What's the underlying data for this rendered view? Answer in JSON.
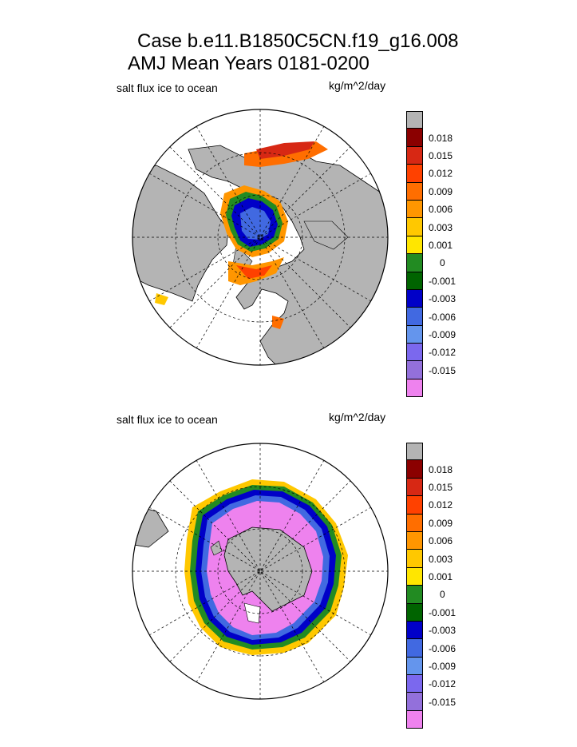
{
  "title": {
    "line1": "Case b.e11.B1850C5CN.f19_g16.008",
    "line2": "AMJ Mean   Years 0181-0200"
  },
  "panels": [
    {
      "id": "nh",
      "label": "salt flux ice to ocean",
      "units": "kg/m^2/day"
    },
    {
      "id": "sh",
      "label": "salt flux ice to ocean",
      "units": "kg/m^2/day"
    }
  ],
  "legend": {
    "colors": [
      "#b4b4b4",
      "#8b0000",
      "#d72814",
      "#ff4100",
      "#ff6e00",
      "#ff9600",
      "#ffc800",
      "#ffe600",
      "#228b22",
      "#006400",
      "#0000c8",
      "#4169e1",
      "#6495ed",
      "#7b68ee",
      "#9370db",
      "#ee82ee"
    ],
    "labels": [
      "0.018",
      "0.015",
      "0.012",
      "0.009",
      "0.006",
      "0.003",
      "0.001",
      "0",
      "-0.001",
      "-0.003",
      "-0.006",
      "-0.009",
      "-0.012",
      "-0.015"
    ]
  }
}
